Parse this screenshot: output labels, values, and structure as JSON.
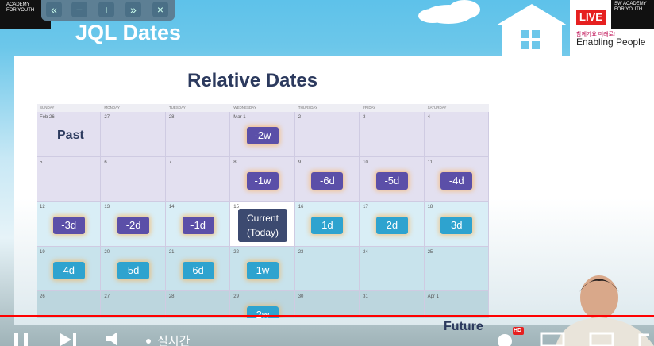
{
  "header": {
    "title": "JQL Dates",
    "live": "LIVE",
    "slogan": "함께가요 미래로!",
    "brand": "Enabling People",
    "left_logo": "ACADEMY FOR YOUTH",
    "right_logo": "SW ACADEMY FOR YOUTH"
  },
  "slide": {
    "title": "Relative Dates",
    "past_label": "Past",
    "future_label": "Future"
  },
  "calendar": {
    "weekdays": [
      "SUNDAY",
      "MONDAY",
      "TUESDAY",
      "WEDNESDAY",
      "THURSDAY",
      "FRIDAY",
      "SATURDAY"
    ],
    "weeks": [
      [
        {
          "date": "Feb 26"
        },
        {
          "date": "27"
        },
        {
          "date": "28"
        },
        {
          "date": "Mar 1",
          "badge": "-2w",
          "color": "#5b4fa8"
        },
        {
          "date": "2"
        },
        {
          "date": "3"
        },
        {
          "date": "4"
        }
      ],
      [
        {
          "date": "5"
        },
        {
          "date": "6"
        },
        {
          "date": "7"
        },
        {
          "date": "8",
          "badge": "-1w",
          "color": "#5b4fa8"
        },
        {
          "date": "9",
          "badge": "-6d",
          "color": "#5b4fa8"
        },
        {
          "date": "10",
          "badge": "-5d",
          "color": "#5b4fa8"
        },
        {
          "date": "11",
          "badge": "-4d",
          "color": "#5b4fa8"
        }
      ],
      [
        {
          "date": "12",
          "badge": "-3d",
          "color": "#5b4fa8"
        },
        {
          "date": "13",
          "badge": "-2d",
          "color": "#5b4fa8"
        },
        {
          "date": "14",
          "badge": "-1d",
          "color": "#5b4fa8"
        },
        {
          "date": "15",
          "badge": "Current (Today)",
          "color": "#3c4a70"
        },
        {
          "date": "16",
          "badge": "1d",
          "color": "#2ea3cf"
        },
        {
          "date": "17",
          "badge": "2d",
          "color": "#2ea3cf"
        },
        {
          "date": "18",
          "badge": "3d",
          "color": "#2ea3cf"
        }
      ],
      [
        {
          "date": "19",
          "badge": "4d",
          "color": "#2ea3cf"
        },
        {
          "date": "20",
          "badge": "5d",
          "color": "#2ea3cf"
        },
        {
          "date": "21",
          "badge": "6d",
          "color": "#2ea3cf"
        },
        {
          "date": "22",
          "badge": "1w",
          "color": "#2ea3cf"
        },
        {
          "date": "23"
        },
        {
          "date": "24"
        },
        {
          "date": "25"
        }
      ],
      [
        {
          "date": "26"
        },
        {
          "date": "27"
        },
        {
          "date": "28"
        },
        {
          "date": "29",
          "badge": "2w",
          "color": "#2ea3cf"
        },
        {
          "date": "30"
        },
        {
          "date": "31"
        },
        {
          "date": "Apr 1"
        }
      ]
    ]
  },
  "player": {
    "live_text": "실시간",
    "quality": "HD"
  }
}
